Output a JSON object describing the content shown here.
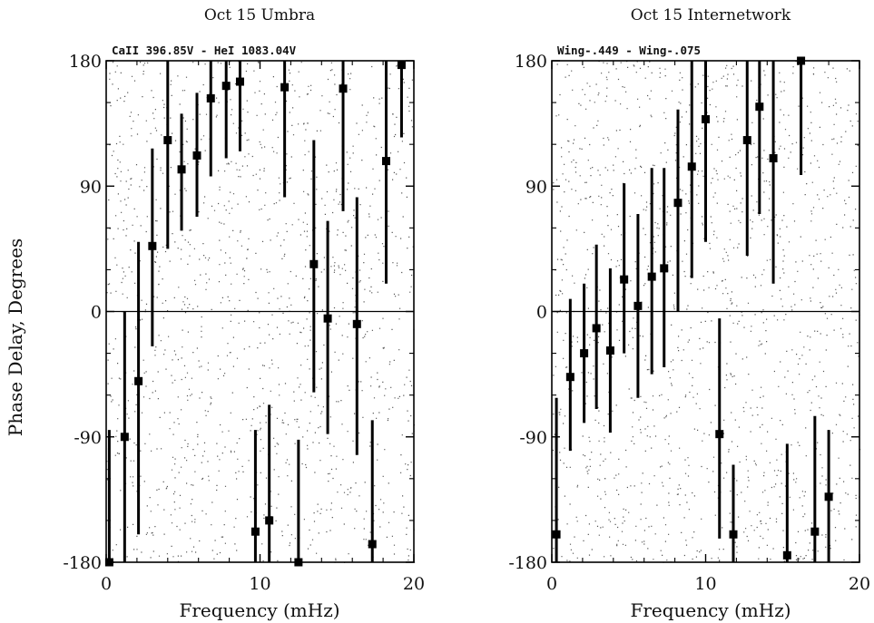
{
  "figure": {
    "ylabel": "Phase Delay, Degrees"
  },
  "chart_data": [
    {
      "type": "scatter",
      "title": "Oct 15 Umbra",
      "subtitle": "CaII 396.85V - HeI 1083.04V",
      "xlabel": "Frequency (mHz)",
      "ylabel": "Phase Delay, Degrees",
      "xlim": [
        0,
        20
      ],
      "ylim": [
        -180,
        180
      ],
      "xticks": [
        "0",
        "10",
        "20"
      ],
      "yticks": [
        "180",
        "90",
        "0",
        "-90",
        "-180"
      ],
      "zero_line": true,
      "background_scatter": true,
      "x": [
        0.2,
        1.2,
        2.1,
        3.0,
        4.0,
        4.9,
        5.9,
        6.8,
        7.8,
        8.7,
        9.7,
        10.6,
        11.6,
        12.5,
        13.5,
        14.4,
        15.4,
        16.3,
        17.3,
        18.2,
        19.2
      ],
      "y": [
        -180,
        -90,
        -50,
        47,
        123,
        102,
        112,
        153,
        162,
        165,
        -158,
        -150,
        161,
        -180,
        34,
        -5,
        160,
        -9,
        -167,
        108,
        177
      ],
      "y_low": [
        -180,
        -180,
        -160,
        -25,
        45,
        58,
        68,
        97,
        110,
        115,
        -180,
        -180,
        82,
        -180,
        -58,
        -88,
        72,
        -103,
        -180,
        20,
        125
      ],
      "y_high": [
        -85,
        0,
        50,
        117,
        180,
        142,
        157,
        180,
        180,
        180,
        -85,
        -67,
        180,
        -92,
        123,
        65,
        180,
        82,
        -78,
        180,
        180
      ]
    },
    {
      "type": "scatter",
      "title": "Oct 15 Internetwork",
      "subtitle": "Wing-.449 - Wing-.075",
      "xlabel": "Frequency (mHz)",
      "ylabel": "",
      "xlim": [
        0,
        20
      ],
      "ylim": [
        -180,
        180
      ],
      "xticks": [
        "0",
        "10",
        "20"
      ],
      "yticks": [
        "180",
        "90",
        "0",
        "-90",
        "-180"
      ],
      "zero_line": true,
      "background_scatter": true,
      "x": [
        0.3,
        1.2,
        2.1,
        2.9,
        3.8,
        4.7,
        5.6,
        6.5,
        7.3,
        8.2,
        9.1,
        10.0,
        10.9,
        11.8,
        12.7,
        13.5,
        14.4,
        15.3,
        16.2,
        17.1,
        18.0
      ],
      "y": [
        -160,
        -47,
        -30,
        -12,
        -28,
        23,
        4,
        25,
        31,
        78,
        104,
        138,
        -88,
        -160,
        123,
        147,
        110,
        -175,
        180,
        -158,
        -133
      ],
      "y_low": [
        -180,
        -100,
        -80,
        -70,
        -87,
        -30,
        -62,
        -45,
        -40,
        0,
        24,
        50,
        -163,
        -180,
        40,
        70,
        20,
        -180,
        98,
        -180,
        -180
      ],
      "y_high": [
        -62,
        9,
        20,
        48,
        31,
        92,
        70,
        103,
        103,
        145,
        182,
        182,
        -5,
        -110,
        180,
        180,
        180,
        -95,
        180,
        -75,
        -85
      ]
    }
  ]
}
